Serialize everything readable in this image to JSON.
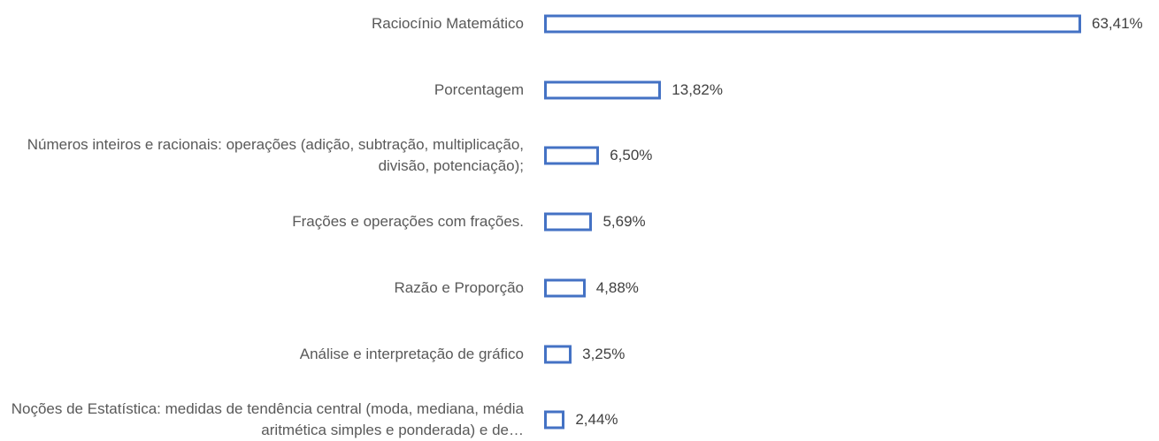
{
  "chart_data": {
    "type": "bar",
    "orientation": "horizontal",
    "categories": [
      "Raciocínio Matemático",
      "Porcentagem",
      "Números inteiros e racionais: operações (adição, subtração, multiplicação, divisão, potenciação);",
      "Frações e operações com frações.",
      "Razão e Proporção",
      "Análise e interpretação de gráfico",
      "Noções de Estatística: medidas de tendência central (moda, mediana, média aritmética simples e ponderada) e de…"
    ],
    "values": [
      63.41,
      13.82,
      6.5,
      5.69,
      4.88,
      3.25,
      2.44
    ],
    "value_labels": [
      "63,41%",
      "13,82%",
      "6,50%",
      "5,69%",
      "4,88%",
      "3,25%",
      "2,44%"
    ],
    "color": "#4472c4"
  }
}
